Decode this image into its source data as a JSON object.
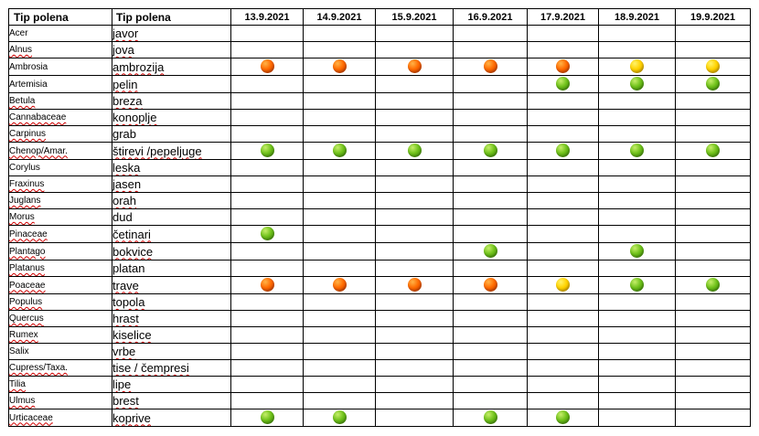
{
  "headers": {
    "latin": "Tip polena",
    "local": "Tip polena",
    "dates": [
      "13.9.2021",
      "14.9.2021",
      "15.9.2021",
      "16.9.2021",
      "17.9.2021",
      "18.9.2021",
      "19.9.2021"
    ]
  },
  "legend_colors": {
    "green": "#6fc11a",
    "yellow": "#ffd200",
    "orange": "#ff6a00"
  },
  "rows": [
    {
      "latin": "Acer",
      "local": "javor",
      "levels": [
        "",
        "",
        "",
        "",
        "",
        "",
        ""
      ]
    },
    {
      "latin": "Alnus",
      "local": "jova",
      "levels": [
        "",
        "",
        "",
        "",
        "",
        "",
        ""
      ]
    },
    {
      "latin": "Ambrosia",
      "local": "ambrozija",
      "levels": [
        "orange",
        "orange",
        "orange",
        "orange",
        "orange",
        "yellow",
        "yellow"
      ]
    },
    {
      "latin": "Artemisia",
      "local": "pelin",
      "levels": [
        "",
        "",
        "",
        "",
        "green",
        "green",
        "green"
      ]
    },
    {
      "latin": "Betula",
      "local": "breza",
      "levels": [
        "",
        "",
        "",
        "",
        "",
        "",
        ""
      ]
    },
    {
      "latin": "Cannabaceae",
      "local": "konoplje",
      "levels": [
        "",
        "",
        "",
        "",
        "",
        "",
        ""
      ]
    },
    {
      "latin": "Carpinus",
      "local": "grab",
      "levels": [
        "",
        "",
        "",
        "",
        "",
        "",
        ""
      ]
    },
    {
      "latin": "Chenop/Amar.",
      "local": "štirevi /pepeljuge",
      "levels": [
        "green",
        "green",
        "green",
        "green",
        "green",
        "green",
        "green"
      ]
    },
    {
      "latin": "Corylus",
      "local": "leska",
      "levels": [
        "",
        "",
        "",
        "",
        "",
        "",
        ""
      ]
    },
    {
      "latin": "Fraxinus",
      "local": "jasen",
      "levels": [
        "",
        "",
        "",
        "",
        "",
        "",
        ""
      ]
    },
    {
      "latin": "Juglans",
      "local": "orah",
      "levels": [
        "",
        "",
        "",
        "",
        "",
        "",
        ""
      ]
    },
    {
      "latin": "Morus",
      "local": "dud",
      "levels": [
        "",
        "",
        "",
        "",
        "",
        "",
        ""
      ]
    },
    {
      "latin": "Pinaceae",
      "local": "četinari",
      "levels": [
        "green",
        "",
        "",
        "",
        "",
        "",
        ""
      ]
    },
    {
      "latin": "Plantago",
      "local": "bokvice",
      "levels": [
        "",
        "",
        "",
        "green",
        "",
        "green",
        ""
      ]
    },
    {
      "latin": "Platanus",
      "local": "platan",
      "levels": [
        "",
        "",
        "",
        "",
        "",
        "",
        ""
      ]
    },
    {
      "latin": "Poaceae",
      "local": "trave",
      "levels": [
        "orange",
        "orange",
        "orange",
        "orange",
        "yellow",
        "green",
        "green"
      ]
    },
    {
      "latin": "Populus",
      "local": "topola",
      "levels": [
        "",
        "",
        "",
        "",
        "",
        "",
        ""
      ]
    },
    {
      "latin": "Quercus",
      "local": "hrast",
      "levels": [
        "",
        "",
        "",
        "",
        "",
        "",
        ""
      ]
    },
    {
      "latin": "Rumex",
      "local": "kiselice",
      "levels": [
        "",
        "",
        "",
        "",
        "",
        "",
        ""
      ]
    },
    {
      "latin": "Salix",
      "local": "vrbe",
      "levels": [
        "",
        "",
        "",
        "",
        "",
        "",
        ""
      ]
    },
    {
      "latin": "Cupress/Taxa.",
      "local": "tise / čempresi",
      "levels": [
        "",
        "",
        "",
        "",
        "",
        "",
        ""
      ]
    },
    {
      "latin": "Tilia",
      "local": "lipe",
      "levels": [
        "",
        "",
        "",
        "",
        "",
        "",
        ""
      ]
    },
    {
      "latin": "Ulmus",
      "local": "brest",
      "levels": [
        "",
        "",
        "",
        "",
        "",
        "",
        ""
      ]
    },
    {
      "latin": "Urticaceae",
      "local": "koprive",
      "levels": [
        "green",
        "green",
        "",
        "green",
        "green",
        "",
        ""
      ]
    }
  ]
}
